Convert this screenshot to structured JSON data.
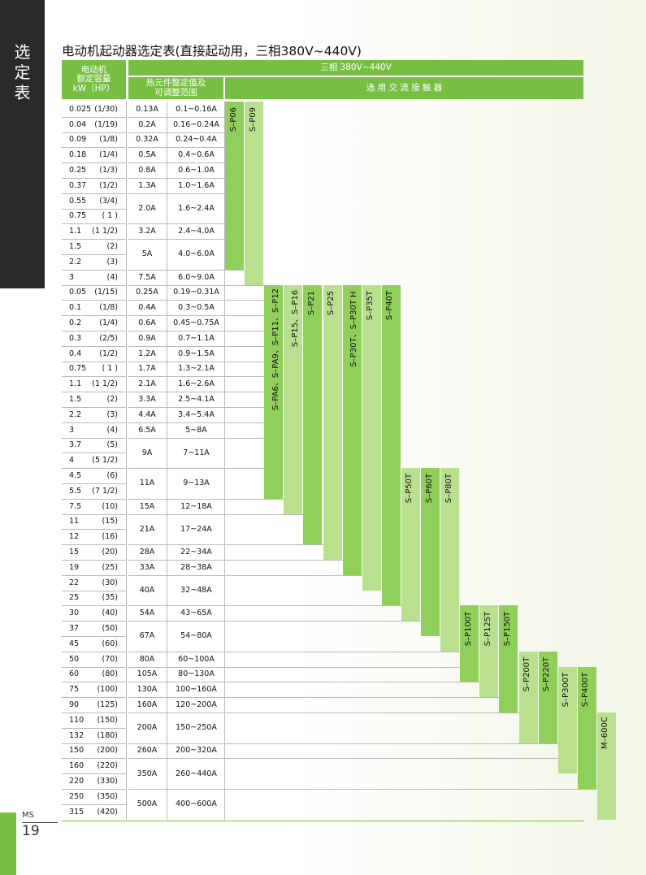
{
  "side_tab": {
    "chars": [
      "选",
      "定",
      "表"
    ]
  },
  "page_title": "电动机起动器选定表(直接起动用，三相380V~440V)",
  "header": {
    "motor_line1": "电动机",
    "motor_line2": "额定容量",
    "motor_line3": "kW（HP）",
    "voltage": "三相 380V~440V",
    "thermal_line1": "热元件整定值及",
    "thermal_line2": "可调整范围",
    "contactor": "选 用 交 流 接 触 器"
  },
  "rows": [
    {
      "kw": "0.025",
      "hp": "(1/30)"
    },
    {
      "kw": "0.04",
      "hp": "(1/19)"
    },
    {
      "kw": "0.09",
      "hp": "(1/8)"
    },
    {
      "kw": "0.18",
      "hp": "(1/4)"
    },
    {
      "kw": "0.25",
      "hp": "(1/3)"
    },
    {
      "kw": "0.37",
      "hp": "(1/2)"
    },
    {
      "kw": "0.55",
      "hp": "(3/4)"
    },
    {
      "kw": "0.75",
      "hp": "( 1 )"
    },
    {
      "kw": "1.1",
      "hp": "(1 1/2)"
    },
    {
      "kw": "1.5",
      "hp": "(2)"
    },
    {
      "kw": "2.2",
      "hp": "(3)"
    },
    {
      "kw": "3",
      "hp": "(4)"
    },
    {
      "kw": "0.05",
      "hp": "(1/15)"
    },
    {
      "kw": "0.1",
      "hp": "(1/8)"
    },
    {
      "kw": "0.2",
      "hp": "(1/4)"
    },
    {
      "kw": "0.3",
      "hp": "(2/5)"
    },
    {
      "kw": "0.4",
      "hp": "(1/2)"
    },
    {
      "kw": "0.75",
      "hp": "( 1 )"
    },
    {
      "kw": "1.1",
      "hp": "(1  1/2)"
    },
    {
      "kw": "1.5",
      "hp": "(2)"
    },
    {
      "kw": "2.2",
      "hp": "(3)"
    },
    {
      "kw": "3",
      "hp": "(4)"
    },
    {
      "kw": "3.7",
      "hp": "(5)"
    },
    {
      "kw": "4",
      "hp": "(5  1/2)"
    },
    {
      "kw": "4.5",
      "hp": "(6)"
    },
    {
      "kw": "5.5",
      "hp": "(7  1/2)"
    },
    {
      "kw": "7.5",
      "hp": "(10)"
    },
    {
      "kw": "11",
      "hp": "(15)"
    },
    {
      "kw": "12",
      "hp": "(16)"
    },
    {
      "kw": "15",
      "hp": "(20)"
    },
    {
      "kw": "19",
      "hp": "(25)"
    },
    {
      "kw": "22",
      "hp": "(30)"
    },
    {
      "kw": "25",
      "hp": "(35)"
    },
    {
      "kw": "30",
      "hp": "(40)"
    },
    {
      "kw": "37",
      "hp": "(50)"
    },
    {
      "kw": "45",
      "hp": "(60)"
    },
    {
      "kw": "50",
      "hp": "(70)"
    },
    {
      "kw": "60",
      "hp": "(80)"
    },
    {
      "kw": "75",
      "hp": "(100)"
    },
    {
      "kw": "90",
      "hp": "(125)"
    },
    {
      "kw": "110",
      "hp": "(150)"
    },
    {
      "kw": "132",
      "hp": "(180)"
    },
    {
      "kw": "150",
      "hp": "(200)"
    },
    {
      "kw": "160",
      "hp": "(220)"
    },
    {
      "kw": "220",
      "hp": "(330)"
    },
    {
      "kw": "250",
      "hp": "(350)"
    },
    {
      "kw": "315",
      "hp": "(420)"
    }
  ],
  "thermal": [
    {
      "rating": "0.13A",
      "range": "0.1~0.16A",
      "from": 0,
      "to": 0
    },
    {
      "rating": "0.2A",
      "range": "0.16~0.24A",
      "from": 1,
      "to": 1
    },
    {
      "rating": "0.32A",
      "range": "0.24~0.4A",
      "from": 2,
      "to": 2
    },
    {
      "rating": "0.5A",
      "range": "0.4~0.6A",
      "from": 3,
      "to": 3
    },
    {
      "rating": "0.8A",
      "range": "0.6~1.0A",
      "from": 4,
      "to": 4
    },
    {
      "rating": "1.3A",
      "range": "1.0~1.6A",
      "from": 5,
      "to": 5
    },
    {
      "rating": "2.0A",
      "range": "1.6~2.4A",
      "from": 6,
      "to": 7
    },
    {
      "rating": "3.2A",
      "range": "2.4~4.0A",
      "from": 8,
      "to": 8
    },
    {
      "rating": "5A",
      "range": "4.0~6.0A",
      "from": 9,
      "to": 10
    },
    {
      "rating": "7.5A",
      "range": "6.0~9.0A",
      "from": 11,
      "to": 11
    },
    {
      "rating": "0.25A",
      "range": "0.19~0.31A",
      "from": 12,
      "to": 12
    },
    {
      "rating": "0.4A",
      "range": "0.3~0.5A",
      "from": 13,
      "to": 13
    },
    {
      "rating": "0.6A",
      "range": "0.45~0.75A",
      "from": 14,
      "to": 14
    },
    {
      "rating": "0.9A",
      "range": "0.7~1.1A",
      "from": 15,
      "to": 15
    },
    {
      "rating": "1.2A",
      "range": "0.9~1.5A",
      "from": 16,
      "to": 16
    },
    {
      "rating": "1.7A",
      "range": "1.3~2.1A",
      "from": 17,
      "to": 17
    },
    {
      "rating": "2.1A",
      "range": "1.6~2.6A",
      "from": 18,
      "to": 18
    },
    {
      "rating": "3.3A",
      "range": "2.5~4.1A",
      "from": 19,
      "to": 19
    },
    {
      "rating": "4.4A",
      "range": "3.4~5.4A",
      "from": 20,
      "to": 20
    },
    {
      "rating": "6.5A",
      "range": "5~8A",
      "from": 21,
      "to": 21
    },
    {
      "rating": "9A",
      "range": "7~11A",
      "from": 22,
      "to": 23
    },
    {
      "rating": "11A",
      "range": "9~13A",
      "from": 24,
      "to": 25
    },
    {
      "rating": "15A",
      "range": "12~18A",
      "from": 26,
      "to": 26
    },
    {
      "rating": "21A",
      "range": "17~24A",
      "from": 27,
      "to": 28
    },
    {
      "rating": "28A",
      "range": "22~34A",
      "from": 29,
      "to": 29
    },
    {
      "rating": "33A",
      "range": "28~38A",
      "from": 30,
      "to": 30
    },
    {
      "rating": "40A",
      "range": "32~48A",
      "from": 31,
      "to": 32
    },
    {
      "rating": "54A",
      "range": "43~65A",
      "from": 33,
      "to": 33
    },
    {
      "rating": "67A",
      "range": "54~80A",
      "from": 34,
      "to": 35
    },
    {
      "rating": "80A",
      "range": "60~100A",
      "from": 36,
      "to": 36
    },
    {
      "rating": "105A",
      "range": "80~130A",
      "from": 37,
      "to": 37
    },
    {
      "rating": "130A",
      "range": "100~160A",
      "from": 38,
      "to": 38
    },
    {
      "rating": "160A",
      "range": "120~200A",
      "from": 39,
      "to": 39
    },
    {
      "rating": "200A",
      "range": "150~250A",
      "from": 40,
      "to": 41
    },
    {
      "rating": "260A",
      "range": "200~320A",
      "from": 42,
      "to": 42
    },
    {
      "rating": "350A",
      "range": "260~440A",
      "from": 43,
      "to": 44
    },
    {
      "rating": "500A",
      "range": "400~600A",
      "from": 45,
      "to": 46
    }
  ],
  "contactors": [
    {
      "label": "S–P06",
      "from": 0,
      "to": 10,
      "tone": "dark"
    },
    {
      "label": "S–P09",
      "from": 0,
      "to": 11,
      "tone": "light"
    },
    {
      "label": "S–PA6、S–PA9、S–P11、S–P12",
      "from": 12,
      "to": 25,
      "tone": "dark"
    },
    {
      "label": "S–P15、S–P16",
      "from": 12,
      "to": 26,
      "tone": "light"
    },
    {
      "label": "S–P21",
      "from": 12,
      "to": 28,
      "tone": "dark"
    },
    {
      "label": "S–P25",
      "from": 12,
      "to": 29,
      "tone": "light"
    },
    {
      "label": "S–P30T、S–P30T H",
      "from": 12,
      "to": 30,
      "tone": "dark"
    },
    {
      "label": "S–P35T",
      "from": 12,
      "to": 31,
      "tone": "light"
    },
    {
      "label": "S–P40T",
      "from": 12,
      "to": 32,
      "tone": "dark"
    },
    {
      "label": "S–P50T",
      "from": 24,
      "to": 33,
      "tone": "light"
    },
    {
      "label": "S–P60T",
      "from": 24,
      "to": 34,
      "tone": "dark"
    },
    {
      "label": "S–P80T",
      "from": 24,
      "to": 35,
      "tone": "light"
    },
    {
      "label": "S–P100T",
      "from": 33,
      "to": 37,
      "tone": "dark"
    },
    {
      "label": "S–P125T",
      "from": 33,
      "to": 38,
      "tone": "light"
    },
    {
      "label": "S–P150T",
      "from": 33,
      "to": 39,
      "tone": "dark"
    },
    {
      "label": "S–P200T",
      "from": 36,
      "to": 41,
      "tone": "light"
    },
    {
      "label": "S–P220T",
      "from": 36,
      "to": 41,
      "tone": "dark"
    },
    {
      "label": "S–P300T",
      "from": 37,
      "to": 43,
      "tone": "light"
    },
    {
      "label": "S–P400T",
      "from": 37,
      "to": 44,
      "tone": "dark"
    },
    {
      "label": "M–600C",
      "from": 40,
      "to": 46,
      "tone": "light"
    }
  ],
  "footer": {
    "ms": "MS",
    "page": "19"
  },
  "colors": {
    "accent": "#77bf43",
    "bar_light": "#b9e08e",
    "bar_dark": "#8fcf5a",
    "side_tab": "#2a2a2a"
  }
}
